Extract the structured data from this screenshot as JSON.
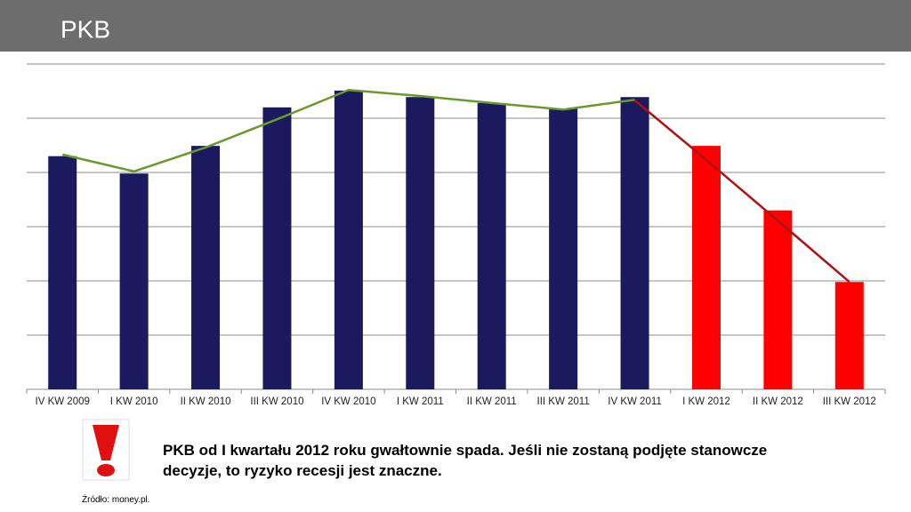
{
  "title": "PKB",
  "chart_data": {
    "type": "bar",
    "categories": [
      "IV KW 2009",
      "I KW 2010",
      "II KW 2010",
      "III KW 2010",
      "IV KW 2010",
      "I KW 2011",
      "II KW 2011",
      "III KW 2011",
      "IV KW 2011",
      "I KW 2012",
      "II KW 2012",
      "III KW 2012"
    ],
    "values": [
      4.3,
      3.98,
      4.49,
      5.2,
      5.51,
      5.39,
      5.28,
      5.18,
      5.39,
      4.49,
      3.3,
      1.98
    ],
    "colors": [
      "#1b1a5e",
      "#1b1a5e",
      "#1b1a5e",
      "#1b1a5e",
      "#1b1a5e",
      "#1b1a5e",
      "#1b1a5e",
      "#1b1a5e",
      "#1b1a5e",
      "#ff0000",
      "#ff0000",
      "#ff0000"
    ],
    "lines": [
      {
        "color": "#6a9a2a",
        "values": [
          4.33,
          4.02,
          4.46,
          4.98,
          5.52,
          5.41,
          5.28,
          5.16,
          5.34,
          null,
          null,
          null
        ]
      },
      {
        "color": "#b01010",
        "values": [
          null,
          null,
          null,
          null,
          null,
          null,
          null,
          null,
          5.33,
          4.23,
          3.11,
          1.98
        ]
      }
    ],
    "ylim": [
      0,
      6
    ],
    "yticks": [
      0,
      1,
      2,
      3,
      4,
      5,
      6
    ],
    "grid": true
  },
  "note": "PKB od I kwartału 2012 roku gwałtownie spada. Jeśli nie zostaną podjęte stanowcze decyzje, to ryzyko recesji jest znaczne.",
  "source": "Źródło: money.pl."
}
